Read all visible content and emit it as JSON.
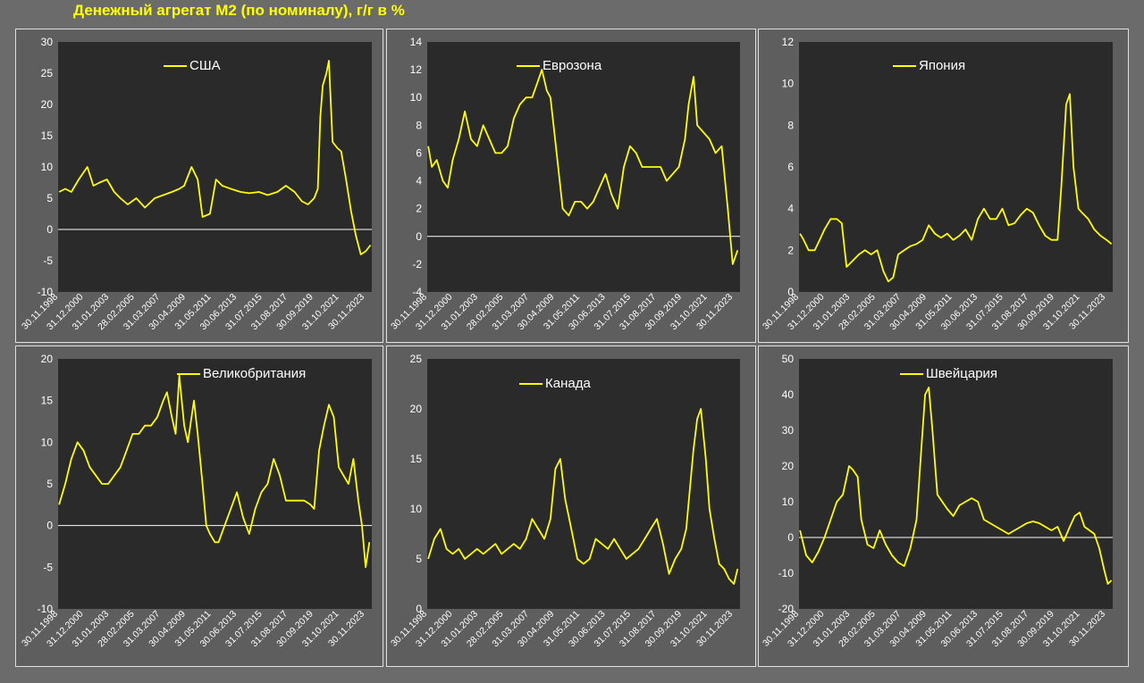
{
  "title": "Денежный агрегат М2 (по номиналу), г/г в %",
  "colors": {
    "line": "#ffff00",
    "plot_bg": "#2a2a2a",
    "zero_line": "#ffffff",
    "text": "#ffffff"
  },
  "chart_data": [
    {
      "type": "line",
      "title": "",
      "series_name": "США",
      "ylim": [
        -10,
        30
      ],
      "yticks": [
        -10,
        -5,
        0,
        5,
        10,
        15,
        20,
        25,
        30
      ],
      "xlim": [
        1998.92,
        2024.5
      ],
      "xtick_labels": [
        "30.11.1998",
        "31.12.2000",
        "31.01.2003",
        "28.02.2005",
        "31.03.2007",
        "30.04.2009",
        "31.05.2011",
        "30.06.2013",
        "31.07.2015",
        "31.08.2017",
        "30.09.2019",
        "31.10.2021",
        "30.11.2023"
      ],
      "xtick_years": [
        1998.92,
        2001.0,
        2003.08,
        2005.16,
        2007.25,
        2009.33,
        2011.41,
        2013.5,
        2015.58,
        2017.66,
        2019.75,
        2021.83,
        2023.92
      ],
      "series": [
        {
          "name": "США",
          "x": [
            1999.0,
            1999.5,
            2000.0,
            2000.6,
            2001.3,
            2001.8,
            2002.3,
            2002.9,
            2003.5,
            2004.0,
            2004.6,
            2005.3,
            2006.0,
            2006.8,
            2007.5,
            2008.2,
            2008.8,
            2009.2,
            2009.8,
            2010.3,
            2010.7,
            2011.3,
            2011.8,
            2012.3,
            2013.0,
            2013.8,
            2014.5,
            2015.3,
            2016.0,
            2016.8,
            2017.5,
            2018.2,
            2018.8,
            2019.3,
            2019.8,
            2020.1,
            2020.3,
            2020.5,
            2020.8,
            2021.0,
            2021.3,
            2021.7,
            2022.0,
            2022.4,
            2022.8,
            2023.2,
            2023.6,
            2024.0,
            2024.4
          ],
          "y": [
            6,
            6.5,
            6,
            8,
            10,
            7,
            7.5,
            8,
            6,
            5,
            4,
            5,
            3.5,
            5,
            5.5,
            6,
            6.5,
            7,
            10,
            8,
            2,
            2.5,
            8,
            7,
            6.5,
            6,
            5.8,
            6,
            5.5,
            6,
            7,
            6,
            4.5,
            4,
            5,
            6.5,
            18,
            23,
            25,
            27,
            14,
            13,
            12.5,
            8,
            3,
            -1,
            -4,
            -3.5,
            -2.5
          ]
        }
      ]
    },
    {
      "type": "line",
      "title": "",
      "series_name": "Еврозона",
      "ylim": [
        -4,
        14
      ],
      "yticks": [
        -4,
        -2,
        0,
        2,
        4,
        6,
        8,
        10,
        12,
        14
      ],
      "xlim": [
        1998.92,
        2024.5
      ],
      "xtick_labels": [
        "30.11.1998",
        "31.12.2000",
        "31.01.2003",
        "28.02.2005",
        "31.03.2007",
        "30.04.2009",
        "31.05.2011",
        "30.06.2013",
        "31.07.2015",
        "31.08.2017",
        "30.09.2019",
        "31.10.2021",
        "30.11.2023"
      ],
      "xtick_years": [
        1998.92,
        2001.0,
        2003.08,
        2005.16,
        2007.25,
        2009.33,
        2011.41,
        2013.5,
        2015.58,
        2017.66,
        2019.75,
        2021.83,
        2023.92
      ],
      "series": [
        {
          "name": "Еврозона",
          "x": [
            1999.0,
            1999.3,
            1999.7,
            2000.2,
            2000.6,
            2001.0,
            2001.5,
            2002.0,
            2002.5,
            2003.0,
            2003.5,
            2004.0,
            2004.5,
            2005.0,
            2005.5,
            2006.0,
            2006.5,
            2007.0,
            2007.5,
            2007.9,
            2008.3,
            2008.7,
            2009.0,
            2009.5,
            2010.0,
            2010.5,
            2011.0,
            2011.5,
            2012.0,
            2012.5,
            2013.0,
            2013.5,
            2014.0,
            2014.5,
            2015.0,
            2015.5,
            2016.0,
            2016.5,
            2017.0,
            2017.5,
            2018.0,
            2018.5,
            2019.0,
            2019.5,
            2020.0,
            2020.3,
            2020.7,
            2021.0,
            2021.5,
            2022.0,
            2022.5,
            2023.0,
            2023.5,
            2023.9,
            2024.3
          ],
          "y": [
            6.5,
            5,
            5.5,
            4,
            3.5,
            5.5,
            7,
            9,
            7,
            6.5,
            8,
            7,
            6,
            6,
            6.5,
            8.5,
            9.5,
            10,
            10,
            11,
            12,
            10.5,
            10,
            6,
            2,
            1.5,
            2.5,
            2.5,
            2,
            2.5,
            3.5,
            4.5,
            3,
            2,
            5,
            6.5,
            6,
            5,
            5,
            5,
            5,
            4,
            4.5,
            5,
            7,
            9.5,
            11.5,
            8,
            7.5,
            7,
            6,
            6.5,
            2,
            -2,
            -1
          ]
        }
      ]
    },
    {
      "type": "line",
      "title": "",
      "series_name": "Япония",
      "ylim": [
        0,
        12
      ],
      "yticks": [
        0,
        2,
        4,
        6,
        8,
        10,
        12
      ],
      "xlim": [
        1998.92,
        2024.5
      ],
      "xtick_labels": [
        "30.11.1998",
        "31.12.2000",
        "31.01.2003",
        "28.02.2005",
        "31.03.2007",
        "30.04.2009",
        "31.05.2011",
        "30.06.2013",
        "31.07.2015",
        "31.08.2017",
        "30.09.2019",
        "31.10.2021",
        "30.11.2023"
      ],
      "xtick_years": [
        1998.92,
        2001.0,
        2003.08,
        2005.16,
        2007.25,
        2009.33,
        2011.41,
        2013.5,
        2015.58,
        2017.66,
        2019.75,
        2021.83,
        2023.92
      ],
      "series": [
        {
          "name": "Япония",
          "x": [
            1999.0,
            1999.3,
            1999.7,
            2000.2,
            2000.6,
            2001.0,
            2001.5,
            2002.0,
            2002.4,
            2002.8,
            2003.3,
            2003.8,
            2004.3,
            2004.8,
            2005.3,
            2005.8,
            2006.2,
            2006.6,
            2007.0,
            2007.5,
            2008.0,
            2008.5,
            2009.0,
            2009.5,
            2010.0,
            2010.5,
            2011.0,
            2011.5,
            2012.0,
            2012.5,
            2013.0,
            2013.5,
            2014.0,
            2014.5,
            2015.0,
            2015.5,
            2016.0,
            2016.5,
            2017.0,
            2017.5,
            2018.0,
            2018.5,
            2019.0,
            2019.5,
            2020.0,
            2020.3,
            2020.7,
            2021.0,
            2021.3,
            2021.7,
            2022.0,
            2022.5,
            2023.0,
            2023.5,
            2024.0,
            2024.4
          ],
          "y": [
            2.8,
            2.5,
            2,
            2,
            2.5,
            3,
            3.5,
            3.5,
            3.3,
            1.2,
            1.5,
            1.8,
            2,
            1.8,
            2,
            1,
            0.5,
            0.7,
            1.8,
            2,
            2.2,
            2.3,
            2.5,
            3.2,
            2.8,
            2.6,
            2.8,
            2.5,
            2.7,
            3,
            2.5,
            3.5,
            4,
            3.5,
            3.5,
            4,
            3.2,
            3.3,
            3.7,
            4,
            3.8,
            3.2,
            2.7,
            2.5,
            2.5,
            5,
            9,
            9.5,
            6,
            4,
            3.8,
            3.5,
            3,
            2.7,
            2.5,
            2.3
          ]
        }
      ]
    },
    {
      "type": "line",
      "title": "",
      "series_name": "Великобритания",
      "ylim": [
        -10,
        20
      ],
      "yticks": [
        -10,
        -5,
        0,
        5,
        10,
        15,
        20
      ],
      "xlim": [
        1998.92,
        2024.5
      ],
      "xtick_labels": [
        "30.11.1998",
        "31.12.2000",
        "31.01.2003",
        "28.02.2005",
        "31.03.2007",
        "30.04.2009",
        "31.05.2011",
        "30.06.2013",
        "31.07.2015",
        "31.08.2017",
        "30.09.2019",
        "31.10.2021",
        "30.11.2023"
      ],
      "xtick_years": [
        1998.92,
        2001.0,
        2003.08,
        2005.16,
        2007.25,
        2009.33,
        2011.41,
        2013.5,
        2015.58,
        2017.66,
        2019.75,
        2021.83,
        2023.92
      ],
      "series": [
        {
          "name": "Великобритания",
          "x": [
            1999.0,
            1999.5,
            2000.0,
            2000.5,
            2001.0,
            2001.5,
            2002.0,
            2002.5,
            2003.0,
            2003.5,
            2004.0,
            2004.5,
            2005.0,
            2005.5,
            2006.0,
            2006.5,
            2007.0,
            2007.5,
            2007.8,
            2008.2,
            2008.5,
            2008.8,
            2009.2,
            2009.5,
            2010.0,
            2010.3,
            2010.7,
            2011.0,
            2011.3,
            2011.7,
            2012.0,
            2012.5,
            2013.0,
            2013.5,
            2014.0,
            2014.5,
            2015.0,
            2015.5,
            2016.0,
            2016.5,
            2017.0,
            2017.5,
            2018.0,
            2018.5,
            2019.0,
            2019.5,
            2019.8,
            2020.2,
            2020.6,
            2021.0,
            2021.4,
            2021.8,
            2022.2,
            2022.6,
            2023.0,
            2023.4,
            2023.7,
            2024.0,
            2024.3
          ],
          "y": [
            2.5,
            5,
            8,
            10,
            9,
            7,
            6,
            5,
            5,
            6,
            7,
            9,
            11,
            11,
            12,
            12,
            13,
            15,
            16,
            13,
            11,
            18,
            12,
            10,
            15,
            11,
            5,
            0,
            -1,
            -2,
            -2,
            0,
            2,
            4,
            1,
            -1,
            2,
            4,
            5,
            8,
            6,
            3,
            3,
            3,
            3,
            2.5,
            2,
            9,
            12,
            14.5,
            13,
            7,
            6,
            5,
            8,
            3,
            0,
            -5,
            -2
          ]
        }
      ]
    },
    {
      "type": "line",
      "title": "",
      "series_name": "Канада",
      "ylim": [
        0,
        25
      ],
      "yticks": [
        0,
        5,
        10,
        15,
        20,
        25
      ],
      "xlim": [
        1998.92,
        2024.5
      ],
      "xtick_labels": [
        "30.11.1998",
        "31.12.2000",
        "31.01.2003",
        "28.02.2005",
        "31.03.2007",
        "30.04.2009",
        "31.05.2011",
        "30.06.2013",
        "31.07.2015",
        "31.08.2017",
        "30.09.2019",
        "31.10.2021",
        "30.11.2023"
      ],
      "xtick_years": [
        1998.92,
        2001.0,
        2003.08,
        2005.16,
        2007.25,
        2009.33,
        2011.41,
        2013.5,
        2015.58,
        2017.66,
        2019.75,
        2021.83,
        2023.92
      ],
      "series": [
        {
          "name": "Канада",
          "x": [
            1999.0,
            1999.5,
            2000.0,
            2000.5,
            2001.0,
            2001.5,
            2002.0,
            2002.5,
            2003.0,
            2003.5,
            2004.0,
            2004.5,
            2005.0,
            2005.5,
            2006.0,
            2006.5,
            2007.0,
            2007.5,
            2008.0,
            2008.5,
            2009.0,
            2009.4,
            2009.8,
            2010.2,
            2010.7,
            2011.2,
            2011.7,
            2012.2,
            2012.7,
            2013.2,
            2013.7,
            2014.2,
            2014.7,
            2015.2,
            2015.7,
            2016.2,
            2016.7,
            2017.2,
            2017.7,
            2018.2,
            2018.7,
            2019.2,
            2019.7,
            2020.1,
            2020.4,
            2020.7,
            2021.0,
            2021.3,
            2021.7,
            2022.0,
            2022.4,
            2022.8,
            2023.2,
            2023.6,
            2024.0,
            2024.3
          ],
          "y": [
            5,
            7,
            8,
            6,
            5.5,
            6,
            5,
            5.5,
            6,
            5.5,
            6,
            6.5,
            5.5,
            6,
            6.5,
            6,
            7,
            9,
            8,
            7,
            9,
            14,
            15,
            11,
            8,
            5,
            4.5,
            5,
            7,
            6.5,
            6,
            7,
            6,
            5,
            5.5,
            6,
            7,
            8,
            9,
            6.5,
            3.5,
            5,
            6,
            8,
            12,
            16,
            19,
            20,
            15,
            10,
            7,
            4.5,
            4,
            3,
            2.5,
            4
          ]
        }
      ]
    },
    {
      "type": "line",
      "title": "",
      "series_name": "Швейцария",
      "ylim": [
        -20,
        50
      ],
      "yticks": [
        -20,
        -10,
        0,
        10,
        20,
        30,
        40,
        50
      ],
      "xlim": [
        1998.92,
        2024.5
      ],
      "xtick_labels": [
        "30.11.1998",
        "31.12.2000",
        "31.01.2003",
        "28.02.2005",
        "31.03.2007",
        "30.04.2009",
        "31.05.2011",
        "30.06.2013",
        "31.07.2015",
        "31.08.2017",
        "30.09.2019",
        "31.10.2021",
        "30.11.2023"
      ],
      "xtick_years": [
        1998.92,
        2001.0,
        2003.08,
        2005.16,
        2007.25,
        2009.33,
        2011.41,
        2013.5,
        2015.58,
        2017.66,
        2019.75,
        2021.83,
        2023.92
      ],
      "series": [
        {
          "name": "Швейцария",
          "x": [
            1999.0,
            1999.5,
            2000.0,
            2000.5,
            2001.0,
            2001.5,
            2002.0,
            2002.5,
            2003.0,
            2003.3,
            2003.7,
            2004.0,
            2004.5,
            2005.0,
            2005.5,
            2006.0,
            2006.5,
            2007.0,
            2007.5,
            2008.0,
            2008.5,
            2008.9,
            2009.2,
            2009.5,
            2009.8,
            2010.2,
            2010.6,
            2011.0,
            2011.5,
            2012.0,
            2012.5,
            2013.0,
            2013.5,
            2014.0,
            2014.5,
            2015.0,
            2015.5,
            2016.0,
            2016.5,
            2017.0,
            2017.5,
            2018.0,
            2018.5,
            2019.0,
            2019.5,
            2020.0,
            2020.5,
            2021.0,
            2021.4,
            2021.8,
            2022.2,
            2022.6,
            2023.0,
            2023.4,
            2023.8,
            2024.1,
            2024.4
          ],
          "y": [
            2,
            -5,
            -7,
            -4,
            0,
            5,
            10,
            12,
            20,
            19,
            17,
            5,
            -2,
            -3,
            2,
            -2,
            -5,
            -7,
            -8,
            -3,
            5,
            25,
            40,
            42,
            30,
            12,
            10,
            8,
            6,
            9,
            10,
            11,
            10,
            5,
            4,
            3,
            2,
            1,
            2,
            3,
            4,
            4.5,
            4,
            3,
            2,
            3,
            -1,
            3,
            6,
            7,
            3,
            2,
            1,
            -3,
            -9,
            -13,
            -12
          ]
        }
      ]
    }
  ]
}
